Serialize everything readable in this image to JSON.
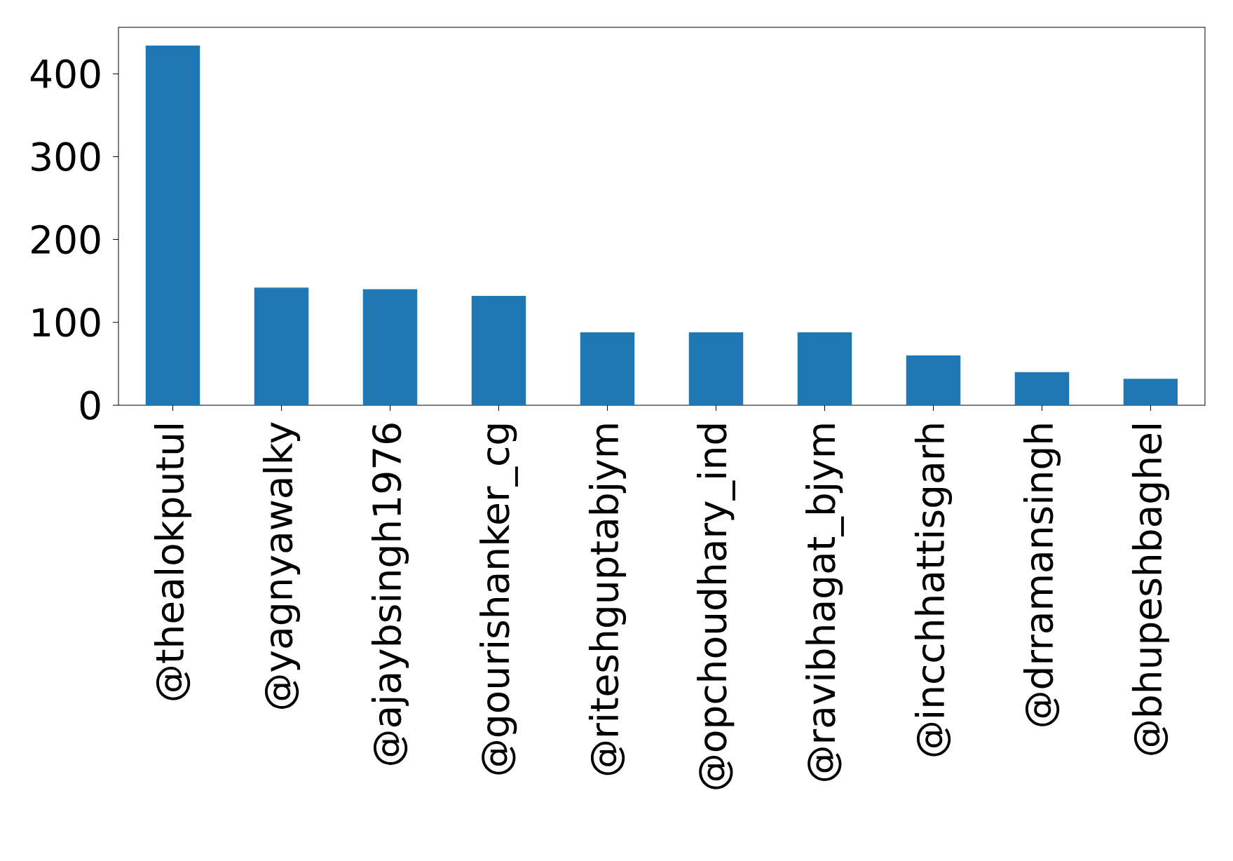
{
  "chart_data": {
    "type": "bar",
    "categories": [
      "@thealokputul",
      "@yagnyawalky",
      "@ajaybsingh1976",
      "@gourishanker_cg",
      "@riteshguptabjym",
      "@opchoudhary_ind",
      "@ravibhagat_bjym",
      "@incchhattisgarh",
      "@drramansingh",
      "@bhupeshbaghel"
    ],
    "values": [
      434,
      142,
      140,
      132,
      88,
      88,
      88,
      60,
      40,
      32
    ],
    "color": "#1f77b4",
    "ylim": [
      0,
      456
    ],
    "yticks": [
      0,
      100,
      200,
      300,
      400
    ],
    "grid": false
  }
}
